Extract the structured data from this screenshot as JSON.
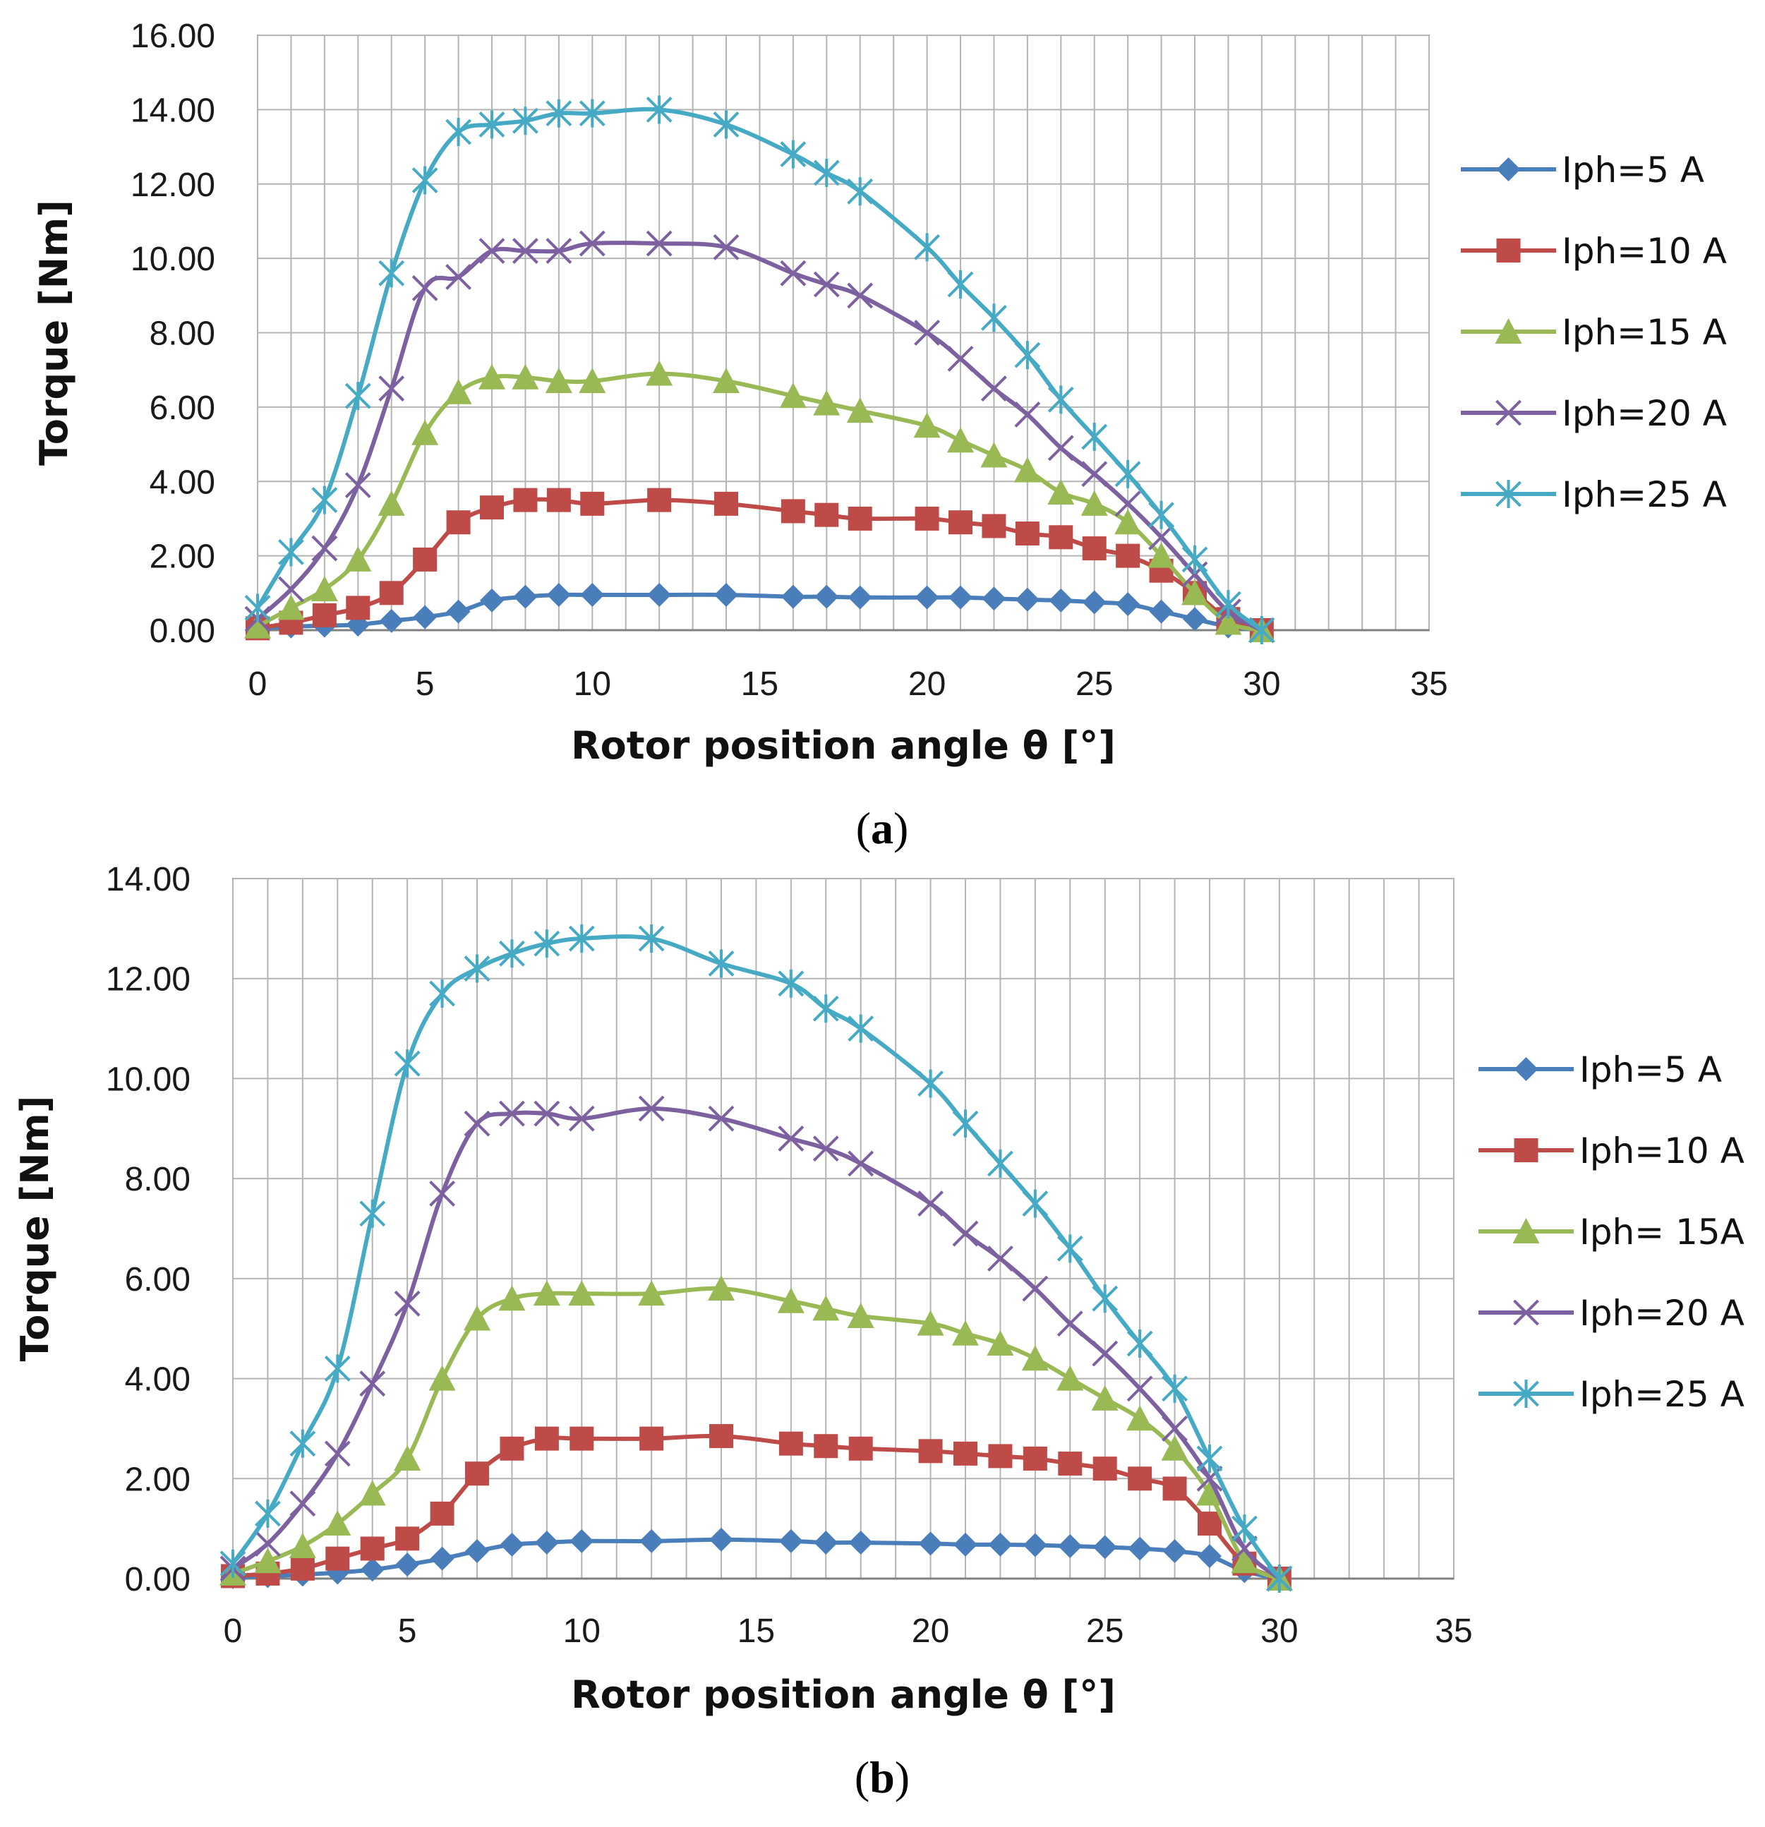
{
  "chart_data": [
    {
      "type": "line",
      "panel": "a",
      "caption_open": "(",
      "caption_letter": "a",
      "caption_close": ")",
      "xlabel": "Rotor position angle  θ [°]",
      "ylabel": "Torque [Nm]",
      "xlim": [
        0,
        35
      ],
      "ylim": [
        0,
        16
      ],
      "xticks": [
        0,
        5,
        10,
        15,
        20,
        25,
        30,
        35
      ],
      "yticks": [
        0,
        2,
        4,
        6,
        8,
        10,
        12,
        14,
        16
      ],
      "xtick_labels": [
        "0",
        "5",
        "10",
        "15",
        "20",
        "25",
        "30",
        "35"
      ],
      "ytick_labels": [
        "0.00",
        "2.00",
        "4.00",
        "6.00",
        "8.00",
        "10.00",
        "12.00",
        "14.00",
        "16.00"
      ],
      "x_minor_step": 1,
      "legend_position": "right",
      "series": [
        {
          "name": "Iph=5 A",
          "color": "#4a7ebb",
          "marker": "diamond",
          "x": [
            0,
            1,
            2,
            3,
            4,
            5,
            6,
            7,
            8,
            9,
            10,
            12,
            14,
            16,
            17,
            18,
            20,
            21,
            22,
            23,
            24,
            25,
            26,
            27,
            28,
            29,
            30
          ],
          "y": [
            0.05,
            0.1,
            0.12,
            0.15,
            0.25,
            0.35,
            0.5,
            0.8,
            0.9,
            0.95,
            0.95,
            0.95,
            0.95,
            0.9,
            0.9,
            0.88,
            0.88,
            0.88,
            0.85,
            0.82,
            0.8,
            0.75,
            0.7,
            0.5,
            0.3,
            0.1,
            0.0
          ]
        },
        {
          "name": "Iph=10 A",
          "color": "#be4b48",
          "marker": "square",
          "x": [
            0,
            1,
            2,
            3,
            4,
            5,
            6,
            7,
            8,
            9,
            10,
            12,
            14,
            16,
            17,
            18,
            20,
            21,
            22,
            23,
            24,
            25,
            26,
            27,
            28,
            29,
            30
          ],
          "y": [
            0.05,
            0.2,
            0.4,
            0.6,
            1.0,
            1.9,
            2.9,
            3.3,
            3.5,
            3.5,
            3.4,
            3.5,
            3.4,
            3.2,
            3.1,
            3.0,
            3.0,
            2.9,
            2.8,
            2.6,
            2.5,
            2.2,
            2.0,
            1.6,
            1.0,
            0.3,
            0.0
          ]
        },
        {
          "name": "Iph=15 A",
          "color": "#98b954",
          "marker": "triangle",
          "x": [
            0,
            1,
            2,
            3,
            4,
            5,
            6,
            7,
            8,
            9,
            10,
            12,
            14,
            16,
            17,
            18,
            20,
            21,
            22,
            23,
            24,
            25,
            26,
            27,
            28,
            29,
            30
          ],
          "y": [
            0.1,
            0.6,
            1.1,
            1.9,
            3.4,
            5.3,
            6.4,
            6.8,
            6.8,
            6.7,
            6.7,
            6.9,
            6.7,
            6.3,
            6.1,
            5.9,
            5.5,
            5.1,
            4.7,
            4.3,
            3.7,
            3.4,
            2.9,
            2.0,
            1.0,
            0.2,
            0.0
          ]
        },
        {
          "name": "Iph=20 A",
          "color": "#7d60a0",
          "marker": "x",
          "x": [
            0,
            1,
            2,
            3,
            4,
            5,
            6,
            7,
            8,
            9,
            10,
            12,
            14,
            16,
            17,
            18,
            20,
            21,
            22,
            23,
            24,
            25,
            26,
            27,
            28,
            29,
            30
          ],
          "y": [
            0.3,
            1.1,
            2.2,
            3.9,
            6.5,
            9.2,
            9.5,
            10.2,
            10.2,
            10.2,
            10.4,
            10.4,
            10.3,
            9.6,
            9.3,
            9.0,
            8.0,
            7.3,
            6.5,
            5.8,
            4.9,
            4.2,
            3.4,
            2.5,
            1.5,
            0.5,
            0.0
          ]
        },
        {
          "name": "Iph=25 A",
          "color": "#46aac5",
          "marker": "star",
          "x": [
            0,
            1,
            2,
            3,
            4,
            5,
            6,
            7,
            8,
            9,
            10,
            12,
            14,
            16,
            17,
            18,
            20,
            21,
            22,
            23,
            24,
            25,
            26,
            27,
            28,
            29,
            30
          ],
          "y": [
            0.6,
            2.1,
            3.5,
            6.3,
            9.6,
            12.1,
            13.4,
            13.6,
            13.7,
            13.9,
            13.9,
            14.0,
            13.6,
            12.8,
            12.3,
            11.8,
            10.3,
            9.3,
            8.4,
            7.4,
            6.2,
            5.2,
            4.2,
            3.1,
            1.9,
            0.7,
            0.0
          ]
        }
      ]
    },
    {
      "type": "line",
      "panel": "b",
      "caption_open": "(",
      "caption_letter": "b",
      "caption_close": ")",
      "xlabel": "Rotor position angle  θ [°]",
      "ylabel": "Torque [Nm]",
      "xlim": [
        0,
        35
      ],
      "ylim": [
        0,
        14
      ],
      "xticks": [
        0,
        5,
        10,
        15,
        20,
        25,
        30,
        35
      ],
      "yticks": [
        0,
        2,
        4,
        6,
        8,
        10,
        12,
        14
      ],
      "xtick_labels": [
        "0",
        "5",
        "10",
        "15",
        "20",
        "25",
        "30",
        "35"
      ],
      "ytick_labels": [
        "0.00",
        "2.00",
        "4.00",
        "6.00",
        "8.00",
        "10.00",
        "12.00",
        "14.00"
      ],
      "x_minor_step": 1,
      "legend_position": "right",
      "series": [
        {
          "name": "Iph=5 A",
          "color": "#4a7ebb",
          "marker": "diamond",
          "x": [
            0,
            1,
            2,
            3,
            4,
            5,
            6,
            7,
            8,
            9,
            10,
            12,
            14,
            16,
            17,
            18,
            20,
            21,
            22,
            23,
            24,
            25,
            26,
            27,
            28,
            29,
            30
          ],
          "y": [
            0.03,
            0.05,
            0.08,
            0.12,
            0.18,
            0.28,
            0.4,
            0.55,
            0.68,
            0.72,
            0.75,
            0.75,
            0.78,
            0.75,
            0.72,
            0.72,
            0.7,
            0.68,
            0.68,
            0.67,
            0.65,
            0.63,
            0.6,
            0.55,
            0.45,
            0.15,
            0.0
          ]
        },
        {
          "name": "Iph=10 A",
          "color": "#be4b48",
          "marker": "square",
          "x": [
            0,
            1,
            2,
            3,
            4,
            5,
            6,
            7,
            8,
            9,
            10,
            12,
            14,
            16,
            17,
            18,
            20,
            21,
            22,
            23,
            24,
            25,
            26,
            27,
            28,
            29,
            30
          ],
          "y": [
            0.05,
            0.1,
            0.2,
            0.4,
            0.6,
            0.8,
            1.3,
            2.1,
            2.6,
            2.8,
            2.8,
            2.8,
            2.85,
            2.7,
            2.65,
            2.6,
            2.55,
            2.5,
            2.45,
            2.4,
            2.3,
            2.2,
            2.0,
            1.8,
            1.1,
            0.3,
            0.0
          ]
        },
        {
          "name": "Iph= 15A",
          "color": "#98b954",
          "marker": "triangle",
          "x": [
            0,
            1,
            2,
            3,
            4,
            5,
            6,
            7,
            8,
            9,
            10,
            12,
            14,
            16,
            17,
            18,
            20,
            21,
            22,
            23,
            24,
            25,
            26,
            27,
            28,
            29,
            30
          ],
          "y": [
            0.1,
            0.35,
            0.65,
            1.1,
            1.7,
            2.4,
            4.0,
            5.2,
            5.6,
            5.7,
            5.7,
            5.7,
            5.8,
            5.55,
            5.4,
            5.25,
            5.1,
            4.9,
            4.7,
            4.4,
            4.0,
            3.6,
            3.2,
            2.6,
            1.7,
            0.35,
            0.0
          ]
        },
        {
          "name": "Iph=20 A",
          "color": "#7d60a0",
          "marker": "x",
          "x": [
            0,
            1,
            2,
            3,
            4,
            5,
            6,
            7,
            8,
            9,
            10,
            12,
            14,
            16,
            17,
            18,
            20,
            21,
            22,
            23,
            24,
            25,
            26,
            27,
            28,
            29,
            30
          ],
          "y": [
            0.2,
            0.7,
            1.5,
            2.5,
            3.9,
            5.5,
            7.7,
            9.1,
            9.3,
            9.3,
            9.2,
            9.4,
            9.2,
            8.8,
            8.6,
            8.3,
            7.5,
            6.9,
            6.4,
            5.8,
            5.1,
            4.5,
            3.8,
            3.0,
            2.0,
            0.6,
            0.0
          ]
        },
        {
          "name": "Iph=25 A",
          "color": "#46aac5",
          "marker": "star",
          "x": [
            0,
            1,
            2,
            3,
            4,
            5,
            6,
            7,
            8,
            9,
            10,
            12,
            14,
            16,
            17,
            18,
            20,
            21,
            22,
            23,
            24,
            25,
            26,
            27,
            28,
            29,
            30
          ],
          "y": [
            0.3,
            1.3,
            2.7,
            4.2,
            7.3,
            10.3,
            11.7,
            12.2,
            12.5,
            12.7,
            12.8,
            12.8,
            12.3,
            11.9,
            11.4,
            11.0,
            9.9,
            9.1,
            8.3,
            7.5,
            6.6,
            5.6,
            4.7,
            3.8,
            2.4,
            1.0,
            0.0
          ]
        }
      ]
    }
  ]
}
